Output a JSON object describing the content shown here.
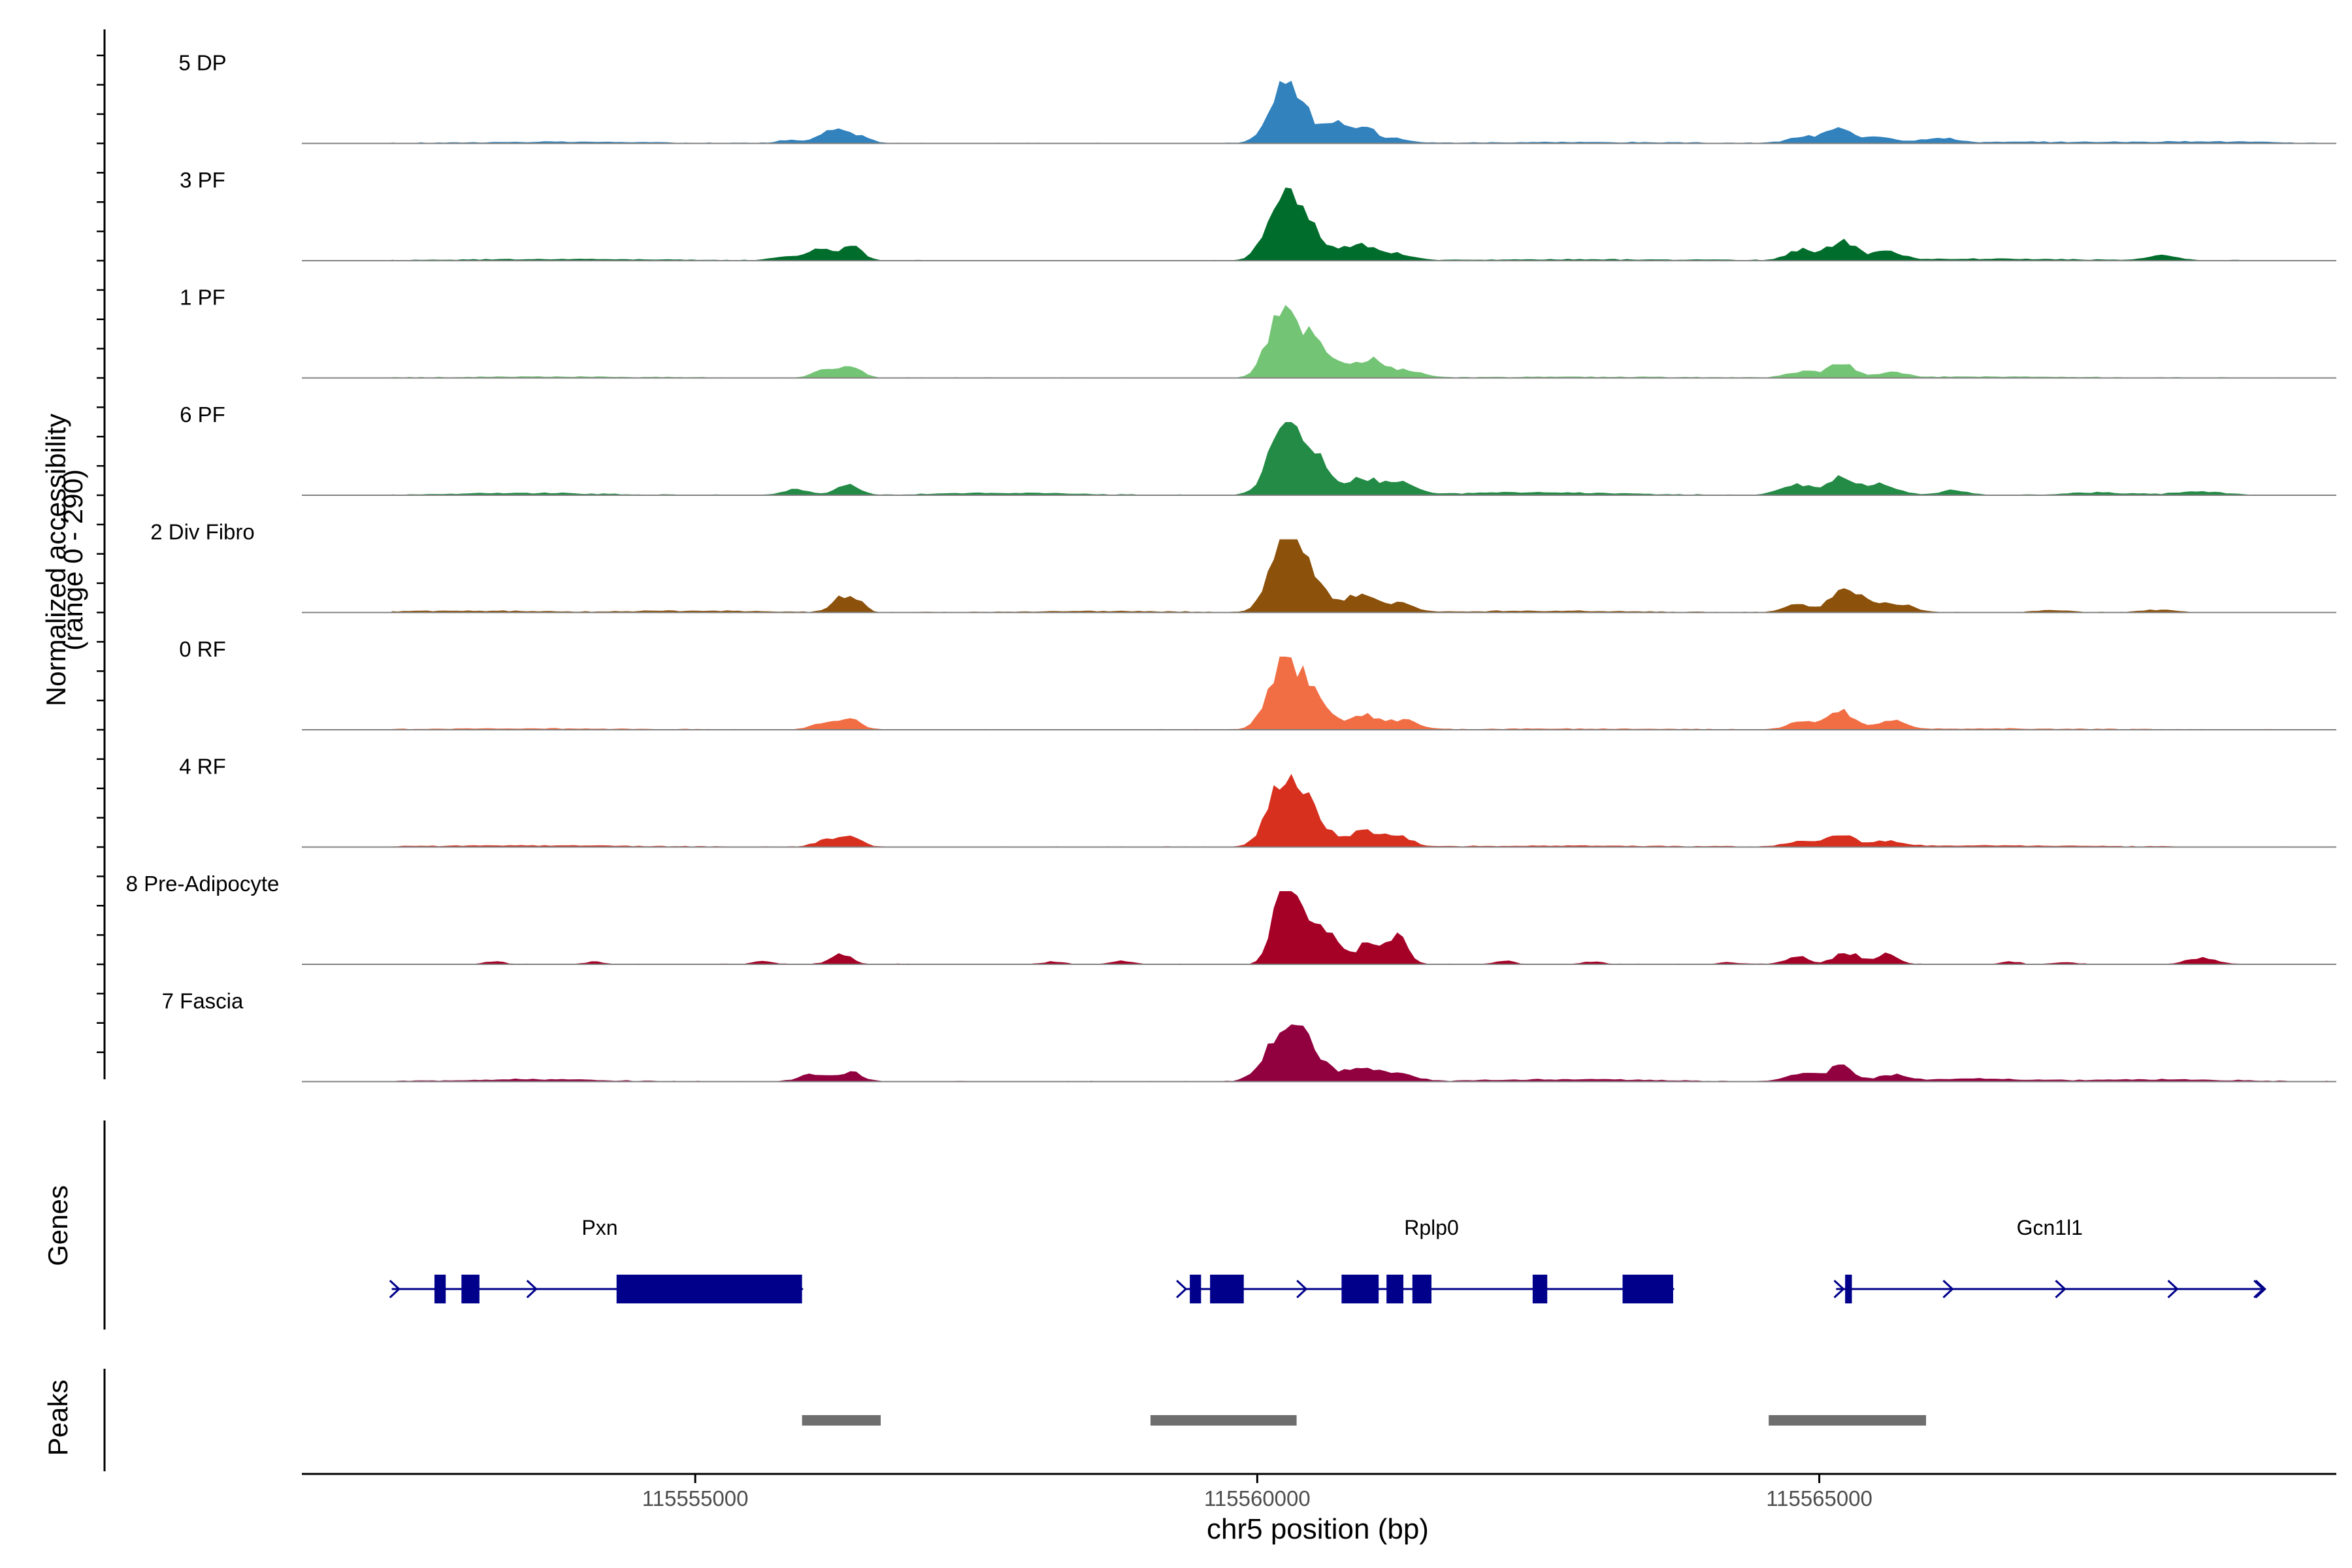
{
  "chart_data": {
    "type": "area",
    "title": "",
    "ylabel_line1": "Normalized accessibility",
    "ylabel_line2": "(range 0 - 290)",
    "ylim": [
      0,
      290
    ],
    "xlabel": "chr5 position (bp)",
    "xlim": [
      115551500,
      115569600
    ],
    "xticks": [
      {
        "value": 115555000,
        "label": "115555000"
      },
      {
        "value": 115560000,
        "label": "115560000"
      },
      {
        "value": 115565000,
        "label": "115565000"
      }
    ],
    "tracks": [
      {
        "name": "5 DP",
        "color": "#3182bd",
        "data_start": 115552300,
        "data_end": 115569600,
        "peaks": [
          [
            115560280,
            245,
            150
          ],
          [
            115560700,
            70,
            100
          ],
          [
            115560950,
            60,
            110
          ],
          [
            115561250,
            18,
            120
          ],
          [
            115556200,
            45,
            100
          ],
          [
            115556350,
            28,
            80
          ],
          [
            115556500,
            20,
            80
          ],
          [
            115555850,
            12,
            120
          ],
          [
            115565170,
            60,
            110
          ],
          [
            115564850,
            25,
            130
          ],
          [
            115565550,
            25,
            130
          ],
          [
            115566050,
            20,
            150
          ],
          [
            115567000,
            5,
            800
          ],
          [
            115568500,
            6,
            500
          ],
          [
            115553800,
            5,
            800
          ],
          [
            115562800,
            4,
            900
          ]
        ]
      },
      {
        "name": "3 PF",
        "color": "#006d2c",
        "data_start": 115552300,
        "data_end": 115569600,
        "peaks": [
          [
            115560220,
            250,
            130
          ],
          [
            115560450,
            120,
            150
          ],
          [
            115560900,
            60,
            140
          ],
          [
            115561250,
            25,
            130
          ],
          [
            115556100,
            50,
            90
          ],
          [
            115556380,
            60,
            100
          ],
          [
            115555800,
            15,
            120
          ],
          [
            115565200,
            75,
            120
          ],
          [
            115564850,
            40,
            120
          ],
          [
            115565600,
            30,
            140
          ],
          [
            115568050,
            18,
            130
          ],
          [
            115566500,
            6,
            900
          ],
          [
            115553800,
            5,
            900
          ],
          [
            115562900,
            4,
            900
          ]
        ]
      },
      {
        "name": "1 PF",
        "color": "#74c476",
        "data_start": 115552300,
        "data_end": 115569600,
        "peaks": [
          [
            115560220,
            240,
            130
          ],
          [
            115560500,
            140,
            160
          ],
          [
            115561000,
            70,
            140
          ],
          [
            115561350,
            25,
            130
          ],
          [
            115556150,
            30,
            100
          ],
          [
            115556380,
            50,
            90
          ],
          [
            115565200,
            60,
            110
          ],
          [
            115564850,
            25,
            130
          ],
          [
            115565650,
            20,
            120
          ],
          [
            115566500,
            4,
            900
          ],
          [
            115553800,
            4,
            900
          ],
          [
            115562900,
            3,
            900
          ]
        ]
      },
      {
        "name": "6 PF",
        "color": "#238b45",
        "data_start": 115552300,
        "data_end": 115569000,
        "peaks": [
          [
            115560230,
            240,
            130
          ],
          [
            115560480,
            150,
            160
          ],
          [
            115560950,
            60,
            140
          ],
          [
            115561280,
            45,
            130
          ],
          [
            115555900,
            25,
            100
          ],
          [
            115556350,
            40,
            100
          ],
          [
            115565200,
            70,
            110
          ],
          [
            115564800,
            40,
            140
          ],
          [
            115565550,
            45,
            140
          ],
          [
            115566200,
            18,
            140
          ],
          [
            115567500,
            10,
            300
          ],
          [
            115568400,
            15,
            200
          ],
          [
            115553500,
            8,
            600
          ],
          [
            115562500,
            10,
            700
          ],
          [
            115557800,
            8,
            600
          ]
        ]
      },
      {
        "name": "2 Div Fibro",
        "color": "#8c510a",
        "data_start": 115552300,
        "data_end": 115568800,
        "peaks": [
          [
            115560220,
            250,
            120
          ],
          [
            115560450,
            160,
            140
          ],
          [
            115560900,
            65,
            130
          ],
          [
            115561250,
            35,
            130
          ],
          [
            115556300,
            55,
            90
          ],
          [
            115556450,
            40,
            70
          ],
          [
            115565200,
            85,
            110
          ],
          [
            115565450,
            45,
            120
          ],
          [
            115564800,
            30,
            120
          ],
          [
            115565750,
            28,
            120
          ],
          [
            115567100,
            8,
            150
          ],
          [
            115568000,
            10,
            150
          ],
          [
            115553000,
            6,
            600
          ],
          [
            115555000,
            6,
            600
          ],
          [
            115562600,
            6,
            700
          ],
          [
            115558600,
            5,
            600
          ]
        ]
      },
      {
        "name": "0 RF",
        "color": "#f16d43",
        "data_start": 115552300,
        "data_end": 115569600,
        "peaks": [
          [
            115560220,
            240,
            130
          ],
          [
            115560450,
            140,
            150
          ],
          [
            115560950,
            60,
            130
          ],
          [
            115561300,
            35,
            130
          ],
          [
            115556150,
            30,
            100
          ],
          [
            115556380,
            45,
            90
          ],
          [
            115565200,
            70,
            110
          ],
          [
            115564850,
            30,
            130
          ],
          [
            115565650,
            35,
            120
          ],
          [
            115566500,
            4,
            900
          ],
          [
            115553500,
            4,
            900
          ],
          [
            115562800,
            3,
            900
          ]
        ]
      },
      {
        "name": "4 RF",
        "color": "#d7301f",
        "data_start": 115552300,
        "data_end": 115569600,
        "peaks": [
          [
            115560220,
            240,
            130
          ],
          [
            115560450,
            150,
            150
          ],
          [
            115560950,
            65,
            130
          ],
          [
            115561250,
            40,
            120
          ],
          [
            115556150,
            25,
            100
          ],
          [
            115556380,
            50,
            90
          ],
          [
            115565200,
            50,
            110
          ],
          [
            115564850,
            25,
            130
          ],
          [
            115565600,
            20,
            130
          ],
          [
            115566500,
            5,
            900
          ],
          [
            115553600,
            5,
            900
          ],
          [
            115562800,
            4,
            900
          ]
        ]
      },
      {
        "name": "8 Pre-Adipocyte",
        "color": "#a50026",
        "data_start": 115552300,
        "data_end": 115569600,
        "peaks": [
          [
            115560220,
            270,
            90
          ],
          [
            115560350,
            180,
            110
          ],
          [
            115560600,
            130,
            120
          ],
          [
            115561000,
            90,
            110
          ],
          [
            115561250,
            110,
            90
          ],
          [
            115556300,
            40,
            90
          ],
          [
            115564800,
            30,
            100
          ],
          [
            115565250,
            45,
            110
          ],
          [
            115565600,
            40,
            90
          ],
          [
            115568400,
            25,
            120
          ],
          [
            115553200,
            12,
            80
          ],
          [
            115554100,
            10,
            80
          ],
          [
            115555600,
            12,
            80
          ],
          [
            115558200,
            10,
            80
          ],
          [
            115558800,
            12,
            90
          ],
          [
            115562200,
            12,
            80
          ],
          [
            115563000,
            10,
            90
          ],
          [
            115564200,
            8,
            80
          ],
          [
            115566700,
            10,
            80
          ],
          [
            115567200,
            8,
            80
          ]
        ]
      },
      {
        "name": "7 Fascia",
        "color": "#91003f",
        "data_start": 115552300,
        "data_end": 115569600,
        "peaks": [
          [
            115560220,
            170,
            150
          ],
          [
            115560450,
            120,
            160
          ],
          [
            115560950,
            60,
            140
          ],
          [
            115561300,
            25,
            130
          ],
          [
            115556050,
            28,
            120
          ],
          [
            115556380,
            38,
            100
          ],
          [
            115565200,
            60,
            110
          ],
          [
            115564850,
            30,
            150
          ],
          [
            115565650,
            25,
            130
          ],
          [
            115566400,
            10,
            400
          ],
          [
            115553500,
            8,
            600
          ],
          [
            115562800,
            8,
            700
          ],
          [
            115568000,
            8,
            600
          ]
        ]
      }
    ],
    "genes_label": "Genes",
    "genes": [
      {
        "name": "Pxn",
        "start": 115552300,
        "end": 115555950,
        "label_pos": 115554150,
        "strand": "+",
        "exons": [
          [
            115552680,
            115552780
          ],
          [
            115552920,
            115553080
          ],
          [
            115554300,
            115555950
          ]
        ],
        "arrows": [
          115552330,
          115553550
        ]
      },
      {
        "name": "Rplp0",
        "start": 115559350,
        "end": 115563700,
        "label_pos": 115561550,
        "strand": "+",
        "exons": [
          [
            115559400,
            115559500
          ],
          [
            115559580,
            115559880
          ],
          [
            115560750,
            115561080
          ],
          [
            115561150,
            115561300
          ],
          [
            115561380,
            115561550
          ],
          [
            115562450,
            115562580
          ],
          [
            115563250,
            115563700
          ]
        ],
        "arrows": [
          115559330,
          115560400
        ]
      },
      {
        "name": "Gcn1l1",
        "start": 115565150,
        "end": 115568950,
        "label_pos": 115567050,
        "strand": "+",
        "exons": [
          [
            115565230,
            115565290
          ]
        ],
        "arrows": [
          115565180,
          115566150,
          115567150,
          115568150,
          115568930
        ]
      }
    ],
    "peaks_label": "Peaks",
    "peak_regions": [
      [
        115555950,
        115556650
      ],
      [
        115559050,
        115560350
      ],
      [
        115564550,
        115565950
      ]
    ]
  }
}
